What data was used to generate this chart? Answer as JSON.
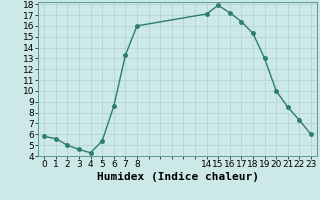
{
  "x": [
    0,
    1,
    2,
    3,
    4,
    5,
    6,
    7,
    8,
    14,
    15,
    16,
    17,
    18,
    19,
    20,
    21,
    22,
    23
  ],
  "y": [
    5.8,
    5.6,
    5.0,
    4.6,
    4.3,
    5.4,
    8.6,
    13.3,
    16.0,
    17.1,
    17.9,
    17.2,
    16.4,
    15.3,
    13.0,
    10.0,
    8.5,
    7.3,
    6.0
  ],
  "line_color": "#2e7d6e",
  "marker": "o",
  "marker_size": 2.5,
  "bg_color": "#cce9e7",
  "grid_color": "#b8d8d6",
  "xlabel": "Humidex (Indice chaleur)",
  "xlim": [
    -0.5,
    23.5
  ],
  "ylim": [
    4,
    18.2
  ],
  "yticks": [
    4,
    5,
    6,
    7,
    8,
    9,
    10,
    11,
    12,
    13,
    14,
    15,
    16,
    17,
    18
  ],
  "xticks_all": [
    0,
    1,
    2,
    3,
    4,
    5,
    6,
    7,
    8,
    9,
    10,
    11,
    12,
    13,
    14,
    15,
    16,
    17,
    18,
    19,
    20,
    21,
    22,
    23
  ],
  "xtick_labels": [
    "0",
    "1",
    "2",
    "3",
    "4",
    "5",
    "6",
    "7",
    "8",
    "",
    "",
    "",
    "",
    "",
    "14",
    "15",
    "16",
    "17",
    "18",
    "19",
    "20",
    "21",
    "22",
    "23"
  ],
  "tick_label_fontsize": 6.5,
  "xlabel_fontsize": 8,
  "line_width": 1.0
}
